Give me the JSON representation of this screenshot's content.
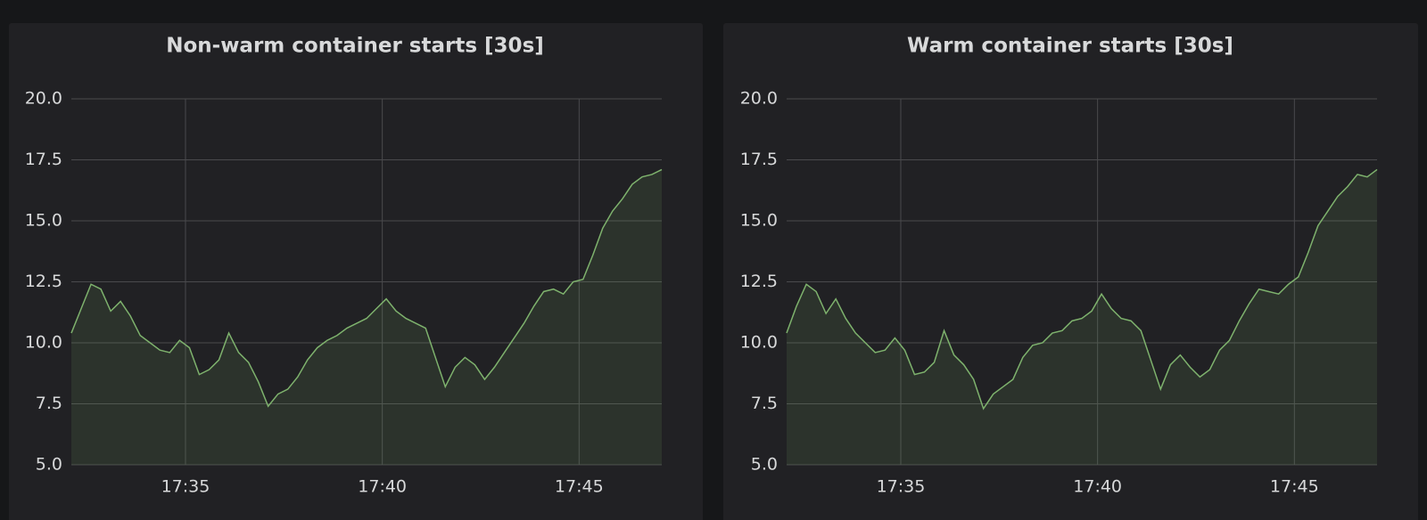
{
  "chart_data": [
    {
      "type": "line",
      "title": "Non-warm container starts [30s]",
      "x": [
        1052.1,
        1052.35,
        1052.6,
        1052.85,
        1053.1,
        1053.35,
        1053.6,
        1053.85,
        1054.1,
        1054.35,
        1054.6,
        1054.85,
        1055.1,
        1055.35,
        1055.6,
        1055.85,
        1056.1,
        1056.35,
        1056.6,
        1056.85,
        1057.1,
        1057.35,
        1057.6,
        1057.85,
        1058.1,
        1058.35,
        1058.6,
        1058.85,
        1059.1,
        1059.35,
        1059.6,
        1059.85,
        1060.1,
        1060.35,
        1060.6,
        1060.85,
        1061.1,
        1061.35,
        1061.6,
        1061.85,
        1062.1,
        1062.35,
        1062.6,
        1062.85,
        1063.1,
        1063.35,
        1063.6,
        1063.85,
        1064.1,
        1064.35,
        1064.6,
        1064.85,
        1065.1,
        1065.35,
        1065.6,
        1065.85,
        1066.1,
        1066.35,
        1066.6,
        1066.85,
        1067.1
      ],
      "series": [
        {
          "color": "#7eb26d",
          "values": [
            10.4,
            11.4,
            12.4,
            12.2,
            11.3,
            11.7,
            11.1,
            10.3,
            10.0,
            9.7,
            9.6,
            10.1,
            9.8,
            8.7,
            8.9,
            9.3,
            10.4,
            9.6,
            9.2,
            8.4,
            7.4,
            7.9,
            8.1,
            8.6,
            9.3,
            9.8,
            10.1,
            10.3,
            10.6,
            10.8,
            11.0,
            11.4,
            11.8,
            11.3,
            11.0,
            10.8,
            10.6,
            9.4,
            8.2,
            9.0,
            9.4,
            9.1,
            8.5,
            9.0,
            9.6,
            10.2,
            10.8,
            11.5,
            12.1,
            12.2,
            12.0,
            12.5,
            12.6,
            13.6,
            14.7,
            15.4,
            15.9,
            16.5,
            16.8,
            16.9,
            17.1
          ]
        }
      ],
      "xlim": [
        1052.1,
        1067.1
      ],
      "xticks": [
        {
          "value": 1055,
          "label": "17:35"
        },
        {
          "value": 1060,
          "label": "17:40"
        },
        {
          "value": 1065,
          "label": "17:45"
        }
      ],
      "ylim": [
        5,
        20
      ],
      "yticks": [
        {
          "value": 5,
          "label": "5.0"
        },
        {
          "value": 7.5,
          "label": "7.5"
        },
        {
          "value": 10,
          "label": "10.0"
        },
        {
          "value": 12.5,
          "label": "12.5"
        },
        {
          "value": 15,
          "label": "15.0"
        },
        {
          "value": 17.5,
          "label": "17.5"
        },
        {
          "value": 20,
          "label": "20.0"
        }
      ],
      "grid": true
    },
    {
      "type": "line",
      "title": "Warm container starts [30s]",
      "x": [
        1052.1,
        1052.35,
        1052.6,
        1052.85,
        1053.1,
        1053.35,
        1053.6,
        1053.85,
        1054.1,
        1054.35,
        1054.6,
        1054.85,
        1055.1,
        1055.35,
        1055.6,
        1055.85,
        1056.1,
        1056.35,
        1056.6,
        1056.85,
        1057.1,
        1057.35,
        1057.6,
        1057.85,
        1058.1,
        1058.35,
        1058.6,
        1058.85,
        1059.1,
        1059.35,
        1059.6,
        1059.85,
        1060.1,
        1060.35,
        1060.6,
        1060.85,
        1061.1,
        1061.35,
        1061.6,
        1061.85,
        1062.1,
        1062.35,
        1062.6,
        1062.85,
        1063.1,
        1063.35,
        1063.6,
        1063.85,
        1064.1,
        1064.35,
        1064.6,
        1064.85,
        1065.1,
        1065.35,
        1065.6,
        1065.85,
        1066.1,
        1066.35,
        1066.6,
        1066.85,
        1067.1
      ],
      "series": [
        {
          "color": "#7eb26d",
          "values": [
            10.4,
            11.5,
            12.4,
            12.1,
            11.2,
            11.8,
            11.0,
            10.4,
            10.0,
            9.6,
            9.7,
            10.2,
            9.7,
            8.7,
            8.8,
            9.2,
            10.5,
            9.5,
            9.1,
            8.5,
            7.3,
            7.9,
            8.2,
            8.5,
            9.4,
            9.9,
            10.0,
            10.4,
            10.5,
            10.9,
            11.0,
            11.3,
            12.0,
            11.4,
            11.0,
            10.9,
            10.5,
            9.3,
            8.1,
            9.1,
            9.5,
            9.0,
            8.6,
            8.9,
            9.7,
            10.1,
            10.9,
            11.6,
            12.2,
            12.1,
            12.0,
            12.4,
            12.7,
            13.7,
            14.8,
            15.4,
            16.0,
            16.4,
            16.9,
            16.8,
            17.1
          ]
        }
      ],
      "xlim": [
        1052.1,
        1067.1
      ],
      "xticks": [
        {
          "value": 1055,
          "label": "17:35"
        },
        {
          "value": 1060,
          "label": "17:40"
        },
        {
          "value": 1065,
          "label": "17:45"
        }
      ],
      "ylim": [
        5,
        20
      ],
      "yticks": [
        {
          "value": 5,
          "label": "5.0"
        },
        {
          "value": 7.5,
          "label": "7.5"
        },
        {
          "value": 10,
          "label": "10.0"
        },
        {
          "value": 12.5,
          "label": "12.5"
        },
        {
          "value": 15,
          "label": "15.0"
        },
        {
          "value": 17.5,
          "label": "17.5"
        },
        {
          "value": 20,
          "label": "20.0"
        }
      ],
      "grid": true
    }
  ]
}
